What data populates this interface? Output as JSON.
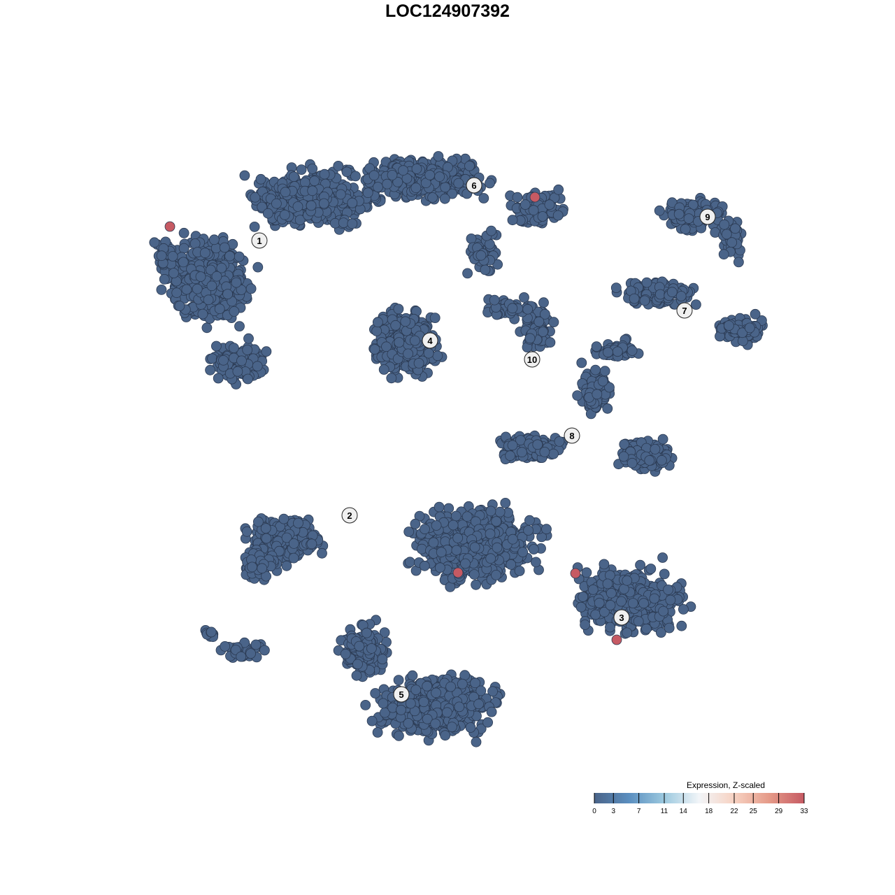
{
  "chart_data": {
    "type": "scatter",
    "title": "LOC124907392",
    "xlabel": "",
    "ylabel": "",
    "grid": false,
    "point_color_default": "#4a6489",
    "highlight_color": "#c65a63",
    "clusters": [
      "1",
      "2",
      "3",
      "4",
      "5",
      "6",
      "7",
      "8",
      "9",
      "10"
    ],
    "highlighted_cells": {
      "count": 5,
      "value": 33
    },
    "legend": {
      "title": "Expression, Z-scaled",
      "placement": "bottom-right",
      "range": [
        0,
        33
      ],
      "ticks": [
        "0",
        "3",
        "7",
        "11",
        "14",
        "18",
        "22",
        "25",
        "29",
        "33"
      ],
      "colors": [
        "#4a6489",
        "#5b8fc0",
        "#9cc9df",
        "#f2f5f8",
        "#f7d2c2",
        "#e59a88",
        "#c65a63"
      ]
    }
  }
}
